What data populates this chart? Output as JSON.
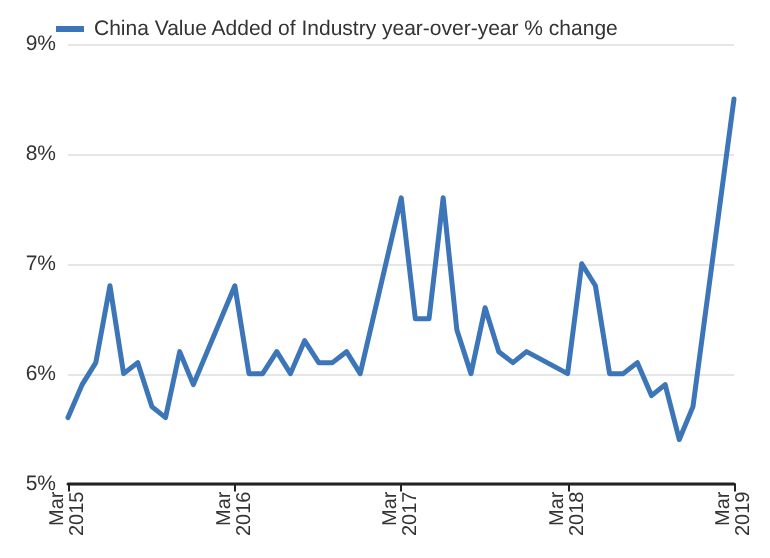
{
  "chart_data": {
    "type": "line",
    "legend": "top left",
    "grid": "y",
    "marker": "none",
    "line_style": "solid",
    "x": [
      "2015-03",
      "2015-04",
      "2015-05",
      "2015-06",
      "2015-07",
      "2015-08",
      "2015-09",
      "2015-10",
      "2015-11",
      "2015-12",
      "2016-03",
      "2016-04",
      "2016-05",
      "2016-06",
      "2016-07",
      "2016-08",
      "2016-09",
      "2016-10",
      "2016-11",
      "2016-12",
      "2017-03",
      "2017-04",
      "2017-05",
      "2017-06",
      "2017-07",
      "2017-08",
      "2017-09",
      "2017-10",
      "2017-11",
      "2017-12",
      "2018-03",
      "2018-04",
      "2018-05",
      "2018-06",
      "2018-07",
      "2018-08",
      "2018-09",
      "2018-10",
      "2018-11",
      "2018-12",
      "2019-03"
    ],
    "series": [
      {
        "name": "China Value Added of Industry year-over-year % change",
        "color": "#3c75b8",
        "values": [
          5.6,
          5.9,
          6.1,
          6.8,
          6.0,
          6.1,
          5.7,
          5.6,
          6.2,
          5.9,
          6.8,
          6.0,
          6.0,
          6.2,
          6.0,
          6.3,
          6.1,
          6.1,
          6.2,
          6.0,
          7.6,
          6.5,
          6.5,
          7.6,
          6.4,
          6.0,
          6.6,
          6.2,
          6.1,
          6.2,
          6.0,
          7.0,
          6.8,
          6.0,
          6.0,
          6.1,
          5.8,
          5.9,
          5.4,
          5.7,
          8.5
        ]
      }
    ],
    "xlim": [
      "2015-03",
      "2019-03"
    ],
    "xticks": [
      {
        "value": "2015-03",
        "label": "Mar\n2015"
      },
      {
        "value": "2016-03",
        "label": "Mar\n2016"
      },
      {
        "value": "2017-03",
        "label": "Mar\n2017"
      },
      {
        "value": "2018-03",
        "label": "Mar\n2018"
      },
      {
        "value": "2019-03",
        "label": "Mar\n2019"
      }
    ],
    "ylim": [
      5,
      9
    ],
    "yticks": [
      {
        "value": 5,
        "label": "5%"
      },
      {
        "value": 6,
        "label": "6%"
      },
      {
        "value": 7,
        "label": "7%"
      },
      {
        "value": 8,
        "label": "8%"
      },
      {
        "value": 9,
        "label": "9%"
      }
    ]
  }
}
